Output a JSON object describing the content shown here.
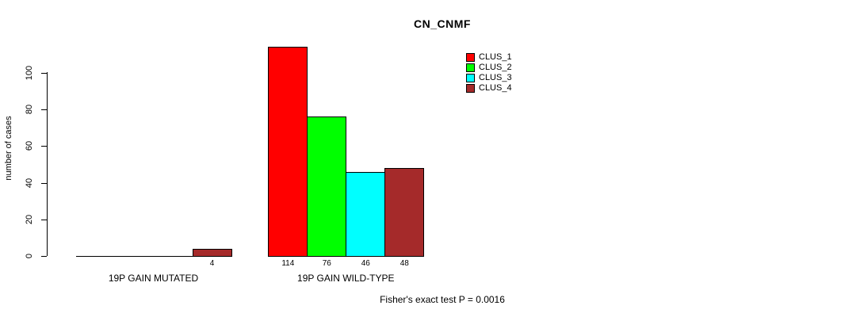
{
  "chart_data": {
    "type": "bar",
    "title": "CN_CNMF",
    "ylabel": "number of cases",
    "ylim": [
      0,
      100
    ],
    "yticks": [
      0,
      20,
      40,
      60,
      80,
      100
    ],
    "grid": false,
    "legend_position": "top-right-inside",
    "categories": [
      "19P GAIN MUTATED",
      "19P GAIN WILD-TYPE"
    ],
    "series": [
      {
        "name": "CLUS_1",
        "color": "#FF0000",
        "values": [
          0,
          114
        ]
      },
      {
        "name": "CLUS_2",
        "color": "#00FF00",
        "values": [
          0,
          76
        ]
      },
      {
        "name": "CLUS_3",
        "color": "#00FFFF",
        "values": [
          0,
          46
        ]
      },
      {
        "name": "CLUS_4",
        "color": "#A52A2A",
        "values": [
          4,
          48
        ]
      }
    ],
    "bar_value_labels": [
      "4",
      "114",
      "76",
      "46",
      "48"
    ],
    "annotation": "Fisher's exact test P = 0.0016"
  }
}
